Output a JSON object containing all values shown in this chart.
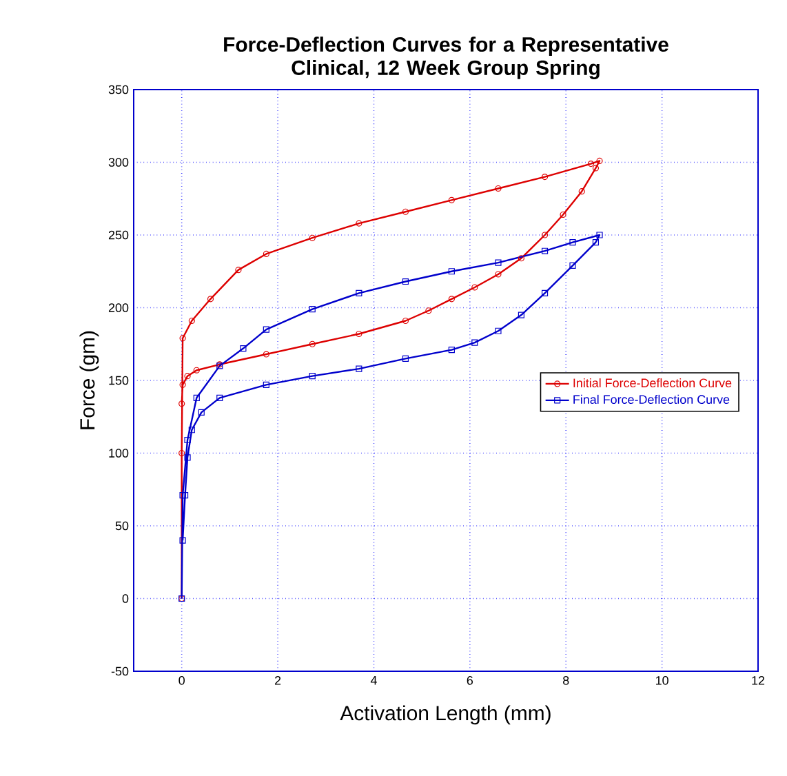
{
  "chart_data": {
    "type": "line",
    "title": "Force-Deflection Curves for a Representative Clinical, 12 Week Group Spring",
    "xlabel": "Activation Length (mm)",
    "ylabel": "Force (gm)",
    "xlim": [
      -1,
      12
    ],
    "ylim": [
      -50,
      350
    ],
    "xticks": [
      0,
      2,
      4,
      6,
      8,
      10,
      12
    ],
    "yticks": [
      -50,
      0,
      50,
      100,
      150,
      200,
      250,
      300,
      350
    ],
    "grid": true,
    "legend": "right",
    "line_style": "solid",
    "series": [
      {
        "name": "Initial Force-Deflection Curve",
        "color": "#dd0000",
        "marker": "circle",
        "x": [
          0,
          0,
          0.02,
          0.21,
          0.6,
          1.18,
          1.76,
          2.72,
          3.69,
          4.66,
          5.62,
          6.59,
          7.56,
          8.52,
          8.7,
          8.62,
          8.33,
          7.94,
          7.56,
          7.07,
          6.59,
          6.1,
          5.62,
          5.14,
          4.66,
          3.69,
          2.72,
          1.76,
          0.79,
          0.31,
          0.12,
          0.02,
          0
        ],
        "values": [
          0,
          100,
          179,
          191,
          206,
          226,
          237,
          248,
          258,
          266,
          274,
          282,
          290,
          299,
          301,
          296,
          280,
          264,
          250,
          234,
          223,
          214,
          206,
          198,
          191,
          182,
          175,
          168,
          161,
          157,
          153,
          147,
          134
        ]
      },
      {
        "name": "Final Force-Deflection Curve",
        "color": "#0000cc",
        "marker": "square",
        "x": [
          0,
          0.02,
          0.12,
          0.31,
          0.79,
          1.28,
          1.76,
          2.72,
          3.69,
          4.66,
          5.62,
          6.59,
          7.56,
          8.14,
          8.7,
          8.62,
          8.14,
          7.56,
          7.07,
          6.59,
          6.1,
          5.62,
          4.66,
          3.69,
          2.72,
          1.76,
          0.79,
          0.41,
          0.21,
          0.12,
          0.07,
          0.02
        ],
        "values": [
          0,
          71,
          109,
          138,
          160,
          172,
          185,
          199,
          210,
          218,
          225,
          231,
          239,
          245,
          250,
          245,
          229,
          210,
          195,
          184,
          176,
          171,
          165,
          158,
          153,
          147,
          138,
          128,
          116,
          97,
          71,
          40
        ]
      }
    ]
  }
}
